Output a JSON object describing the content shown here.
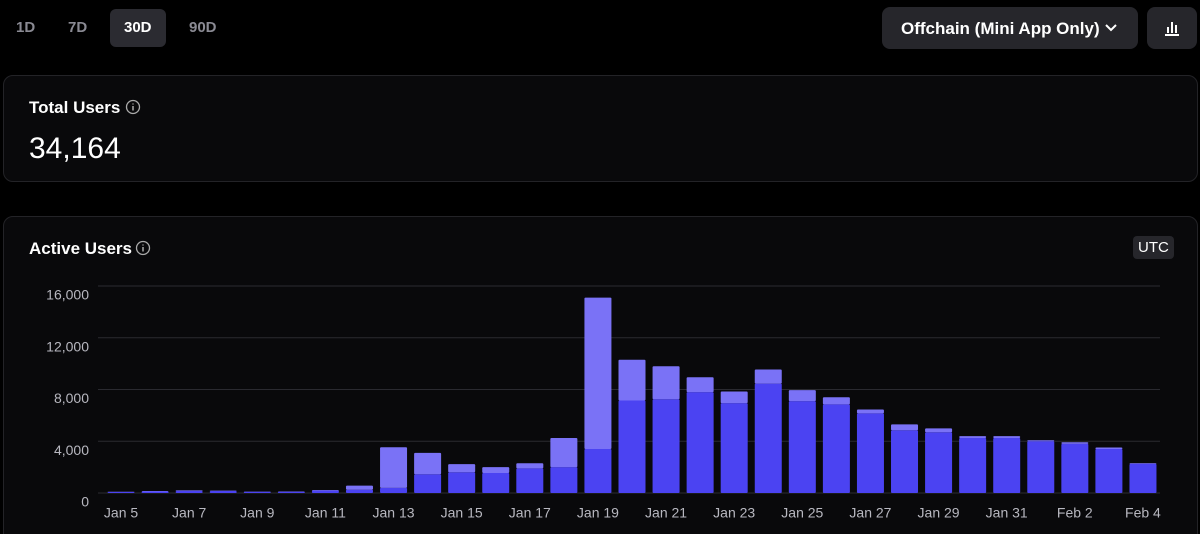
{
  "tabs": [
    "1D",
    "7D",
    "30D",
    "90D"
  ],
  "active_tab": 2,
  "dropdown": "Offchain (Mini App Only)",
  "total_users": {
    "title": "Total Users",
    "value": "34,164"
  },
  "badge": "UTC",
  "chart_data": {
    "type": "stacked-bar",
    "title": "Active Users",
    "categories": [
      "Jan 5",
      null,
      "Jan 7",
      null,
      "Jan 9",
      null,
      "Jan 11",
      null,
      "Jan 13",
      null,
      "Jan 15",
      null,
      "Jan 17",
      null,
      "Jan 19",
      null,
      "Jan 21",
      null,
      "Jan 23",
      null,
      "Jan 25",
      null,
      "Jan 27",
      null,
      "Jan 29",
      null,
      "Jan 31",
      null,
      "Feb 2",
      null,
      "Feb 4"
    ],
    "series": [
      {
        "color": "#4b43f2",
        "values": [
          80,
          120,
          150,
          150,
          100,
          100,
          180,
          250,
          400,
          1450,
          1600,
          1550,
          1900,
          2000,
          3400,
          7150,
          7250,
          7800,
          6950,
          8450,
          7100,
          6850,
          6150,
          4850,
          4700,
          4250,
          4250,
          4000,
          3800,
          3400,
          2250
        ]
      },
      {
        "color": "#7a72f6",
        "values": [
          20,
          30,
          50,
          30,
          20,
          30,
          50,
          320,
          3140,
          1650,
          630,
          450,
          400,
          2250,
          11700,
          3150,
          2550,
          1150,
          900,
          1100,
          850,
          550,
          300,
          450,
          300,
          150,
          150,
          80,
          120,
          120,
          60
        ]
      }
    ],
    "ylim": [
      0,
      16000
    ],
    "yticks": [
      0,
      {
        "value": 4000,
        "label": "4,000"
      },
      {
        "value": 8000,
        "label": "8,000"
      },
      {
        "value": 12000,
        "label": "12,000"
      },
      {
        "value": 16000,
        "label": "16,000"
      }
    ],
    "grid": true
  }
}
